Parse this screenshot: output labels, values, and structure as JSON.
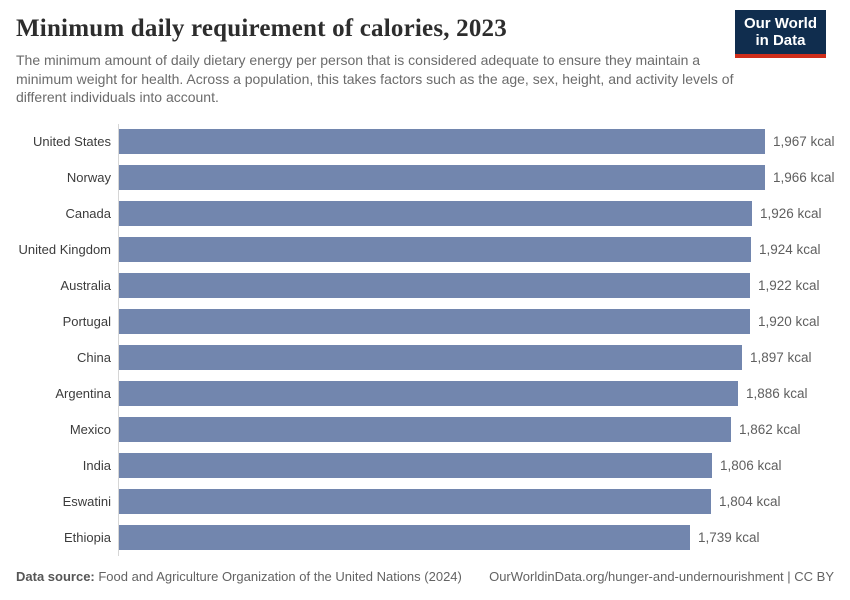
{
  "header": {
    "title": "Minimum daily requirement of calories, 2023",
    "subtitle": "The minimum amount of daily dietary energy per person that is considered adequate to ensure they maintain a minimum weight for health. Across a population, this takes factors such as the age, sex, height, and activity levels of different individuals into account.",
    "logo": {
      "line1": "Our World",
      "line2": "in Data"
    }
  },
  "chart_data": {
    "type": "bar",
    "orientation": "horizontal",
    "title": "Minimum daily requirement of calories, 2023",
    "xlabel": "",
    "ylabel": "",
    "unit": "kcal",
    "xlim": [
      0,
      1967
    ],
    "grid": false,
    "legend": "none",
    "bar_color": "#7286ae",
    "axis_line_color": "#d6d6d6",
    "categories": [
      "United States",
      "Norway",
      "Canada",
      "United Kingdom",
      "Australia",
      "Portugal",
      "China",
      "Argentina",
      "Mexico",
      "India",
      "Eswatini",
      "Ethiopia"
    ],
    "values": [
      1967,
      1966,
      1926,
      1924,
      1922,
      1920,
      1897,
      1886,
      1862,
      1806,
      1804,
      1739
    ],
    "value_labels": [
      "1,967 kcal",
      "1,966 kcal",
      "1,926 kcal",
      "1,924 kcal",
      "1,922 kcal",
      "1,920 kcal",
      "1,897 kcal",
      "1,886 kcal",
      "1,862 kcal",
      "1,806 kcal",
      "1,804 kcal",
      "1,739 kcal"
    ]
  },
  "footer": {
    "source_label": "Data source:",
    "source_text": " Food and Agriculture Organization of the United Nations (2024)",
    "link_text": "OurWorldinData.org/hunger-and-undernourishment | CC BY"
  },
  "colors": {
    "bar": "#7286ae",
    "logo_navy": "#102d4e",
    "logo_red": "#cf2d1a",
    "title_text": "#2d2d2d",
    "subtitle_text": "#6b6b6b",
    "value_text": "#5f5f5f"
  }
}
